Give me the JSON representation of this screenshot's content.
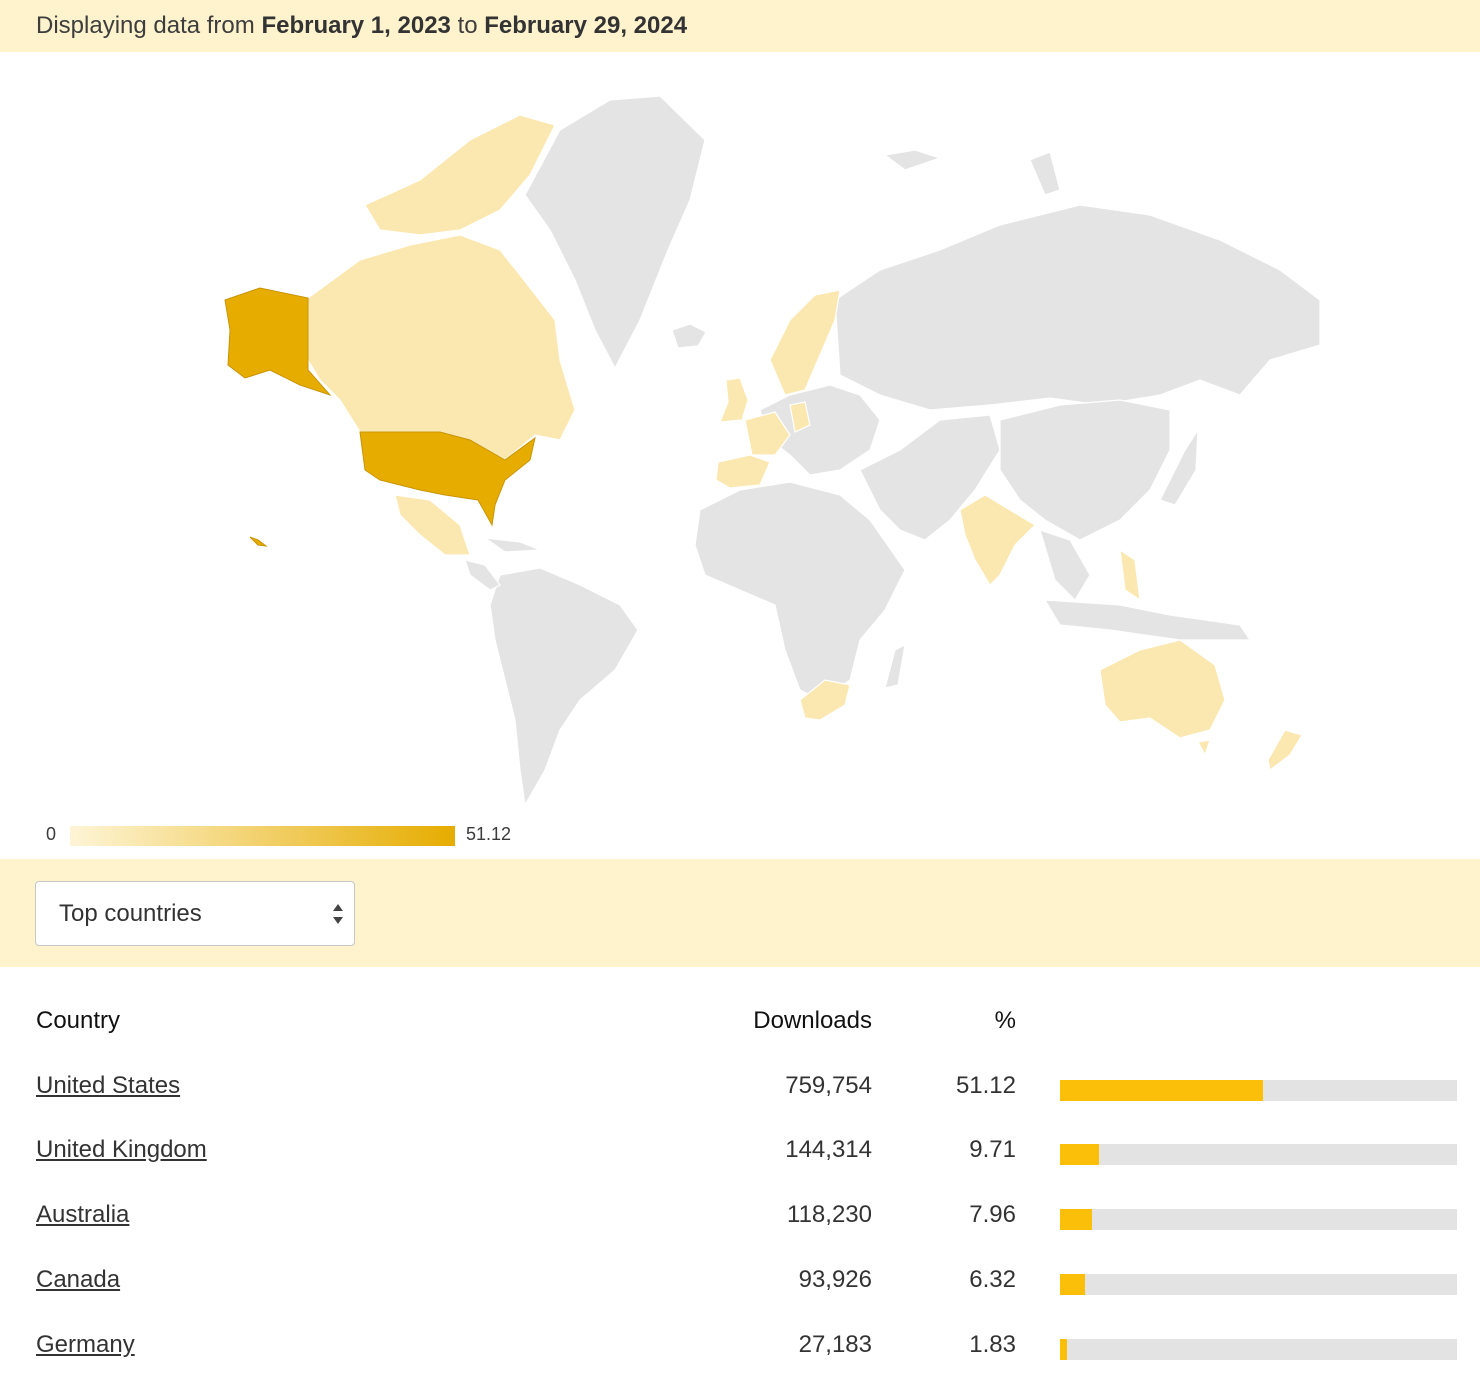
{
  "banner": {
    "prefix": "Displaying data from",
    "start_date": "February 1, 2023",
    "connector": "to",
    "end_date": "February 29, 2024"
  },
  "map": {
    "legend_min": "0",
    "legend_max": "51.12",
    "color_low": "#fef5d6",
    "color_high": "#e6ac00",
    "no_data_color": "#e4e4e4",
    "highlighted_countries": [
      {
        "name": "United States",
        "value": 51.12
      },
      {
        "name": "United Kingdom",
        "value": 9.71
      },
      {
        "name": "Australia",
        "value": 7.96
      },
      {
        "name": "Canada",
        "value": 6.32
      },
      {
        "name": "Germany",
        "value": 1.83
      }
    ]
  },
  "filter": {
    "selected_label": "Top countries"
  },
  "table": {
    "headers": {
      "country": "Country",
      "downloads": "Downloads",
      "percent": "%"
    },
    "rows": [
      {
        "country": "United States",
        "downloads": "759,754",
        "percent": "51.12",
        "fraction": 0.5112
      },
      {
        "country": "United Kingdom",
        "downloads": "144,314",
        "percent": "9.71",
        "fraction": 0.0971
      },
      {
        "country": "Australia",
        "downloads": "118,230",
        "percent": "7.96",
        "fraction": 0.0796
      },
      {
        "country": "Canada",
        "downloads": "93,926",
        "percent": "6.32",
        "fraction": 0.0632
      },
      {
        "country": "Germany",
        "downloads": "27,183",
        "percent": "1.83",
        "fraction": 0.0183
      }
    ],
    "bar_color": "#fbbf0a",
    "track_color": "#e3e3e3"
  }
}
